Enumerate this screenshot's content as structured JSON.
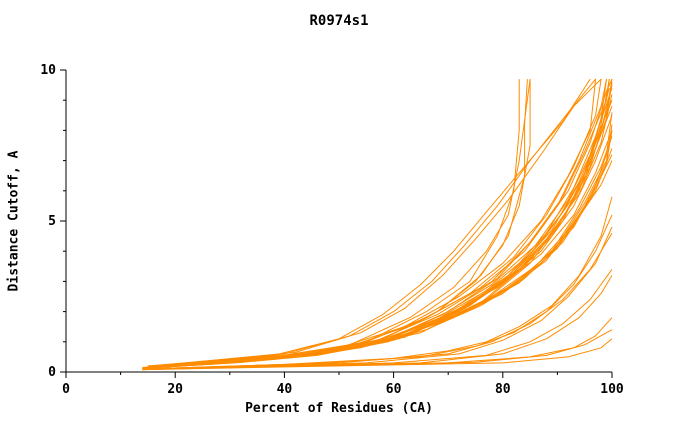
{
  "chart_data": {
    "type": "line",
    "title": "R0974s1",
    "xlabel": "Percent of Residues (CA)",
    "ylabel": "Distance Cutoff, A",
    "xlim": [
      0,
      100
    ],
    "ylim": [
      0,
      10
    ],
    "xticks": [
      0,
      20,
      40,
      60,
      80,
      100
    ],
    "yticks": [
      0,
      5,
      10
    ],
    "x_minor_step": 10,
    "y_minor_step": 1,
    "grid": false,
    "legend": "none",
    "line_color": "#FF8C00",
    "axis_color": "#000000",
    "text_color": "#000000",
    "background_color": "#FFFFFF",
    "series": [
      [
        [
          15,
          0.15
        ],
        [
          40,
          0.5
        ],
        [
          55,
          1
        ],
        [
          66,
          2
        ],
        [
          74,
          3
        ],
        [
          79,
          4.5
        ],
        [
          82,
          6
        ],
        [
          83,
          8
        ],
        [
          83,
          9.7
        ]
      ],
      [
        [
          16,
          0.15
        ],
        [
          42,
          0.5
        ],
        [
          57,
          1
        ],
        [
          68,
          2
        ],
        [
          76,
          3.2
        ],
        [
          81,
          4.5
        ],
        [
          84,
          6.5
        ],
        [
          84,
          8.2
        ],
        [
          84.5,
          9.7
        ]
      ],
      [
        [
          15,
          0.2
        ],
        [
          38,
          0.5
        ],
        [
          52,
          0.9
        ],
        [
          63,
          1.8
        ],
        [
          71,
          2.8
        ],
        [
          77,
          4
        ],
        [
          81,
          5.2
        ],
        [
          83,
          7
        ],
        [
          85,
          9.7
        ]
      ],
      [
        [
          17,
          0.2
        ],
        [
          45,
          0.6
        ],
        [
          58,
          1.1
        ],
        [
          68,
          2
        ],
        [
          75,
          3
        ],
        [
          80,
          4.2
        ],
        [
          83,
          5.5
        ],
        [
          85,
          7.5
        ],
        [
          85,
          9.7
        ]
      ],
      [
        [
          14,
          0.15
        ],
        [
          35,
          0.4
        ],
        [
          50,
          0.8
        ],
        [
          62,
          1.5
        ],
        [
          72,
          2.5
        ],
        [
          80,
          3.6
        ],
        [
          87,
          5
        ],
        [
          92,
          6.5
        ],
        [
          96,
          8
        ],
        [
          97,
          9.7
        ]
      ],
      [
        [
          15,
          0.15
        ],
        [
          37,
          0.45
        ],
        [
          52,
          0.85
        ],
        [
          64,
          1.6
        ],
        [
          74,
          2.6
        ],
        [
          82,
          3.8
        ],
        [
          88,
          5.2
        ],
        [
          93,
          6.8
        ],
        [
          97,
          8.5
        ],
        [
          98,
          9.7
        ]
      ],
      [
        [
          16,
          0.2
        ],
        [
          40,
          0.5
        ],
        [
          55,
          1
        ],
        [
          66,
          1.8
        ],
        [
          76,
          2.8
        ],
        [
          84,
          4
        ],
        [
          90,
          5.5
        ],
        [
          94,
          7
        ],
        [
          98,
          8.8
        ],
        [
          99,
          9.7
        ]
      ],
      [
        [
          15,
          0.2
        ],
        [
          42,
          0.55
        ],
        [
          57,
          1.05
        ],
        [
          68,
          1.9
        ],
        [
          78,
          3
        ],
        [
          85,
          4.3
        ],
        [
          91,
          5.8
        ],
        [
          95,
          7.3
        ],
        [
          99,
          9
        ],
        [
          99.5,
          9.7
        ]
      ],
      [
        [
          17,
          0.2
        ],
        [
          44,
          0.6
        ],
        [
          59,
          1.1
        ],
        [
          70,
          2
        ],
        [
          79,
          3.1
        ],
        [
          86,
          4.5
        ],
        [
          92,
          6
        ],
        [
          96,
          7.6
        ],
        [
          99,
          9.3
        ],
        [
          100,
          9.7
        ]
      ],
      [
        [
          16,
          0.15
        ],
        [
          43,
          0.55
        ],
        [
          58,
          1
        ],
        [
          69,
          1.9
        ],
        [
          78,
          2.9
        ],
        [
          86,
          4.2
        ],
        [
          92,
          5.7
        ],
        [
          96,
          7.2
        ],
        [
          100,
          9
        ]
      ],
      [
        [
          18,
          0.2
        ],
        [
          46,
          0.6
        ],
        [
          61,
          1.15
        ],
        [
          72,
          2.1
        ],
        [
          81,
          3.2
        ],
        [
          88,
          4.6
        ],
        [
          93,
          6.1
        ],
        [
          97,
          7.8
        ],
        [
          100,
          9.4
        ]
      ],
      [
        [
          15,
          0.15
        ],
        [
          40,
          0.5
        ],
        [
          56,
          0.95
        ],
        [
          68,
          1.75
        ],
        [
          77,
          2.7
        ],
        [
          85,
          3.9
        ],
        [
          91,
          5.3
        ],
        [
          96,
          6.9
        ],
        [
          99,
          8.4
        ],
        [
          100,
          9.6
        ]
      ],
      [
        [
          16,
          0.18
        ],
        [
          44,
          0.55
        ],
        [
          60,
          1.05
        ],
        [
          71,
          1.95
        ],
        [
          80,
          3
        ],
        [
          87,
          4.3
        ],
        [
          93,
          5.8
        ],
        [
          97,
          7.4
        ],
        [
          100,
          8.8
        ]
      ],
      [
        [
          17,
          0.2
        ],
        [
          47,
          0.62
        ],
        [
          62,
          1.2
        ],
        [
          73,
          2.15
        ],
        [
          82,
          3.3
        ],
        [
          89,
          4.7
        ],
        [
          94,
          6.3
        ],
        [
          98,
          8
        ],
        [
          100,
          9.5
        ]
      ],
      [
        [
          15,
          0.15
        ],
        [
          41,
          0.5
        ],
        [
          57,
          0.95
        ],
        [
          69,
          1.8
        ],
        [
          79,
          2.8
        ],
        [
          87,
          4
        ],
        [
          93,
          5.5
        ],
        [
          97,
          7
        ],
        [
          100,
          8.5
        ]
      ],
      [
        [
          18,
          0.22
        ],
        [
          48,
          0.65
        ],
        [
          63,
          1.25
        ],
        [
          74,
          2.2
        ],
        [
          83,
          3.4
        ],
        [
          90,
          4.8
        ],
        [
          95,
          6.4
        ],
        [
          98,
          8.2
        ],
        [
          99.5,
          9.7
        ]
      ],
      [
        [
          16,
          0.18
        ],
        [
          45,
          0.58
        ],
        [
          61,
          1.1
        ],
        [
          72,
          2
        ],
        [
          81,
          3.1
        ],
        [
          88,
          4.4
        ],
        [
          94,
          5.9
        ],
        [
          98,
          7.6
        ],
        [
          100,
          9.2
        ]
      ],
      [
        [
          19,
          0.22
        ],
        [
          50,
          0.7
        ],
        [
          65,
          1.3
        ],
        [
          76,
          2.3
        ],
        [
          84,
          3.5
        ],
        [
          91,
          5
        ],
        [
          95,
          6.6
        ],
        [
          98,
          8.4
        ],
        [
          99,
          9.7
        ]
      ],
      [
        [
          17,
          0.2
        ],
        [
          46,
          0.6
        ],
        [
          62,
          1.15
        ],
        [
          73,
          2.1
        ],
        [
          82,
          3.2
        ],
        [
          89,
          4.5
        ],
        [
          94,
          6
        ],
        [
          97,
          7.7
        ],
        [
          99.5,
          9.4
        ]
      ],
      [
        [
          20,
          0.25
        ],
        [
          52,
          0.75
        ],
        [
          66,
          1.4
        ],
        [
          77,
          2.4
        ],
        [
          85,
          3.6
        ],
        [
          91,
          5.1
        ],
        [
          96,
          6.8
        ],
        [
          99,
          8.6
        ],
        [
          100,
          9.7
        ]
      ],
      [
        [
          14,
          0.15
        ],
        [
          33,
          0.35
        ],
        [
          48,
          0.65
        ],
        [
          60,
          1.2
        ],
        [
          70,
          1.9
        ],
        [
          79,
          2.8
        ],
        [
          87,
          3.9
        ],
        [
          93,
          5.2
        ],
        [
          97,
          6.6
        ],
        [
          100,
          8
        ]
      ],
      [
        [
          15,
          0.15
        ],
        [
          36,
          0.4
        ],
        [
          52,
          0.75
        ],
        [
          64,
          1.35
        ],
        [
          74,
          2.1
        ],
        [
          83,
          3
        ],
        [
          90,
          4.2
        ],
        [
          95,
          5.6
        ],
        [
          99,
          7
        ],
        [
          100,
          8.2
        ]
      ],
      [
        [
          14,
          0.12
        ],
        [
          30,
          0.3
        ],
        [
          45,
          0.55
        ],
        [
          58,
          1
        ],
        [
          69,
          1.7
        ],
        [
          78,
          2.5
        ],
        [
          86,
          3.5
        ],
        [
          92,
          4.7
        ],
        [
          97,
          6
        ],
        [
          100,
          7.4
        ]
      ],
      [
        [
          15,
          0.15
        ],
        [
          34,
          0.38
        ],
        [
          50,
          0.7
        ],
        [
          62,
          1.25
        ],
        [
          73,
          2
        ],
        [
          82,
          2.9
        ],
        [
          89,
          4
        ],
        [
          94,
          5.4
        ],
        [
          98,
          6.8
        ],
        [
          100,
          7.8
        ]
      ],
      [
        [
          14,
          0.12
        ],
        [
          32,
          0.32
        ],
        [
          47,
          0.6
        ],
        [
          60,
          1.1
        ],
        [
          71,
          1.8
        ],
        [
          80,
          2.6
        ],
        [
          88,
          3.7
        ],
        [
          93,
          4.9
        ],
        [
          98,
          6.2
        ],
        [
          100,
          7
        ]
      ],
      [
        [
          16,
          0.15
        ],
        [
          38,
          0.42
        ],
        [
          54,
          0.8
        ],
        [
          66,
          1.4
        ],
        [
          76,
          2.2
        ],
        [
          84,
          3.1
        ],
        [
          91,
          4.3
        ],
        [
          96,
          5.7
        ],
        [
          99,
          7.2
        ],
        [
          100,
          8.6
        ]
      ],
      [
        [
          14,
          0.12
        ],
        [
          31,
          0.3
        ],
        [
          46,
          0.55
        ],
        [
          59,
          1
        ],
        [
          70,
          1.75
        ],
        [
          79,
          2.55
        ],
        [
          87,
          3.6
        ],
        [
          93,
          4.8
        ],
        [
          97,
          6.1
        ],
        [
          100,
          7.2
        ]
      ],
      [
        [
          15,
          0.14
        ],
        [
          35,
          0.38
        ],
        [
          51,
          0.72
        ],
        [
          63,
          1.3
        ],
        [
          74,
          2.05
        ],
        [
          83,
          2.95
        ],
        [
          90,
          4.1
        ],
        [
          95,
          5.5
        ],
        [
          99,
          6.9
        ],
        [
          100,
          8
        ]
      ],
      [
        [
          14,
          0.1
        ],
        [
          40,
          0.25
        ],
        [
          60,
          0.45
        ],
        [
          70,
          0.7
        ],
        [
          77,
          1
        ],
        [
          83,
          1.5
        ],
        [
          89,
          2.2
        ],
        [
          94,
          3.2
        ],
        [
          98,
          4.5
        ],
        [
          100,
          5.8
        ]
      ],
      [
        [
          14,
          0.1
        ],
        [
          45,
          0.28
        ],
        [
          65,
          0.5
        ],
        [
          75,
          0.85
        ],
        [
          82,
          1.3
        ],
        [
          88,
          2
        ],
        [
          93,
          2.9
        ],
        [
          97,
          4
        ],
        [
          100,
          5.2
        ]
      ],
      [
        [
          14,
          0.1
        ],
        [
          50,
          0.3
        ],
        [
          70,
          0.6
        ],
        [
          78,
          1
        ],
        [
          85,
          1.6
        ],
        [
          91,
          2.4
        ],
        [
          96,
          3.4
        ],
        [
          100,
          4.6
        ]
      ],
      [
        [
          15,
          0.1
        ],
        [
          55,
          0.3
        ],
        [
          72,
          0.6
        ],
        [
          80,
          1.05
        ],
        [
          87,
          1.7
        ],
        [
          92,
          2.5
        ],
        [
          97,
          3.6
        ],
        [
          100,
          4.8
        ]
      ],
      [
        [
          14,
          0.08
        ],
        [
          60,
          0.3
        ],
        [
          77,
          0.55
        ],
        [
          85,
          1
        ],
        [
          91,
          1.6
        ],
        [
          96,
          2.4
        ],
        [
          100,
          3.4
        ]
      ],
      [
        [
          14,
          0.08
        ],
        [
          65,
          0.3
        ],
        [
          80,
          0.6
        ],
        [
          88,
          1.1
        ],
        [
          94,
          1.8
        ],
        [
          98,
          2.6
        ],
        [
          100,
          3.2
        ]
      ],
      [
        [
          16,
          0.2
        ],
        [
          40,
          0.6
        ],
        [
          52,
          1.2
        ],
        [
          60,
          2
        ],
        [
          67,
          3
        ],
        [
          73,
          4.2
        ],
        [
          79,
          5.5
        ],
        [
          85,
          7
        ],
        [
          92,
          8.6
        ],
        [
          97,
          9.7
        ]
      ],
      [
        [
          15,
          0.2
        ],
        [
          38,
          0.55
        ],
        [
          50,
          1.1
        ],
        [
          58,
          1.9
        ],
        [
          65,
          2.9
        ],
        [
          71,
          4
        ],
        [
          77,
          5.3
        ],
        [
          84,
          6.8
        ],
        [
          91,
          8.3
        ],
        [
          96,
          9.7
        ]
      ],
      [
        [
          17,
          0.22
        ],
        [
          42,
          0.65
        ],
        [
          54,
          1.3
        ],
        [
          62,
          2.1
        ],
        [
          69,
          3.2
        ],
        [
          75,
          4.4
        ],
        [
          81,
          5.7
        ],
        [
          87,
          7.2
        ],
        [
          93,
          8.8
        ],
        [
          98,
          9.7
        ]
      ],
      [
        [
          14,
          0.08
        ],
        [
          70,
          0.3
        ],
        [
          85,
          0.5
        ],
        [
          93,
          0.8
        ],
        [
          97,
          1.2
        ],
        [
          100,
          1.8
        ]
      ],
      [
        [
          15,
          0.1
        ],
        [
          75,
          0.32
        ],
        [
          88,
          0.55
        ],
        [
          95,
          0.9
        ],
        [
          100,
          1.4
        ]
      ],
      [
        [
          14,
          0.08
        ],
        [
          80,
          0.3
        ],
        [
          92,
          0.5
        ],
        [
          98,
          0.8
        ],
        [
          100,
          1.1
        ]
      ]
    ]
  }
}
